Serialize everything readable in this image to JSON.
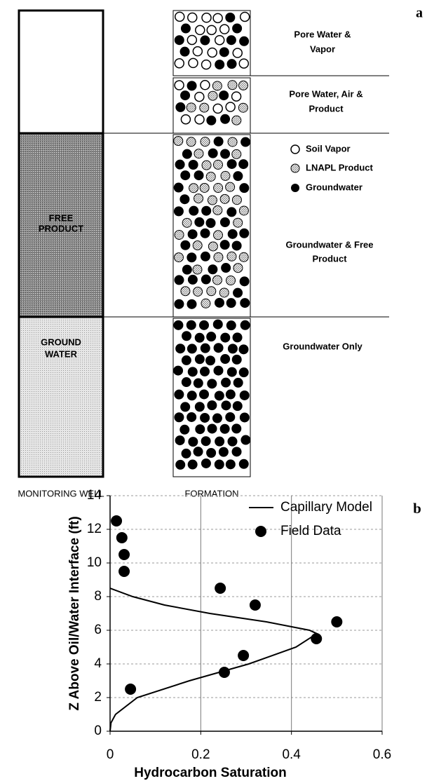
{
  "diagram": {
    "panel_label": "a",
    "well": {
      "label": "MONITORING WELL",
      "free_product": [
        "FREE",
        "PRODUCT"
      ],
      "ground_water": [
        "GROUND",
        "WATER"
      ]
    },
    "formation": {
      "label": "FORMATION"
    },
    "zones": [
      [
        "Pore Water &",
        "Vapor"
      ],
      [
        "Pore Water, Air &",
        "Product"
      ],
      [
        "Groundwater & Free",
        "Product"
      ],
      [
        "Groundwater Only"
      ]
    ],
    "legend": [
      "Soil Vapor",
      "LNAPL Product",
      "Groundwater"
    ]
  },
  "chart_data": {
    "type": "line",
    "panel_label": "b",
    "xlabel": "Hydrocarbon Saturation",
    "ylabel": "Z Above Oil/Water Interface (ft)",
    "xlim": [
      0,
      0.6
    ],
    "ylim": [
      0,
      14
    ],
    "xticks": [
      0,
      0.2,
      0.4,
      0.6
    ],
    "yticks": [
      0,
      2,
      4,
      6,
      8,
      10,
      12,
      14
    ],
    "grid": true,
    "legend": "top-right",
    "series": [
      {
        "name": "Capillary Model",
        "type": "line",
        "color": "#000000",
        "x": [
          0,
          0.002,
          0.012,
          0.06,
          0.175,
          0.306,
          0.41,
          0.456,
          0.44,
          0.345,
          0.22,
          0.12,
          0.05,
          0
        ],
        "values": [
          0,
          0.5,
          1,
          2,
          3,
          4,
          5,
          5.8,
          6,
          6.5,
          7,
          7.5,
          8,
          8.5
        ]
      },
      {
        "name": "Field Data",
        "type": "scatter",
        "color": "#000000",
        "x": [
          0.014,
          0.026,
          0.031,
          0.031,
          0.243,
          0.32,
          0.5,
          0.455,
          0.294,
          0.252,
          0.045
        ],
        "values": [
          12.5,
          11.5,
          10.5,
          9.5,
          8.5,
          7.5,
          6.5,
          5.5,
          4.5,
          3.5,
          2.5
        ]
      }
    ]
  }
}
